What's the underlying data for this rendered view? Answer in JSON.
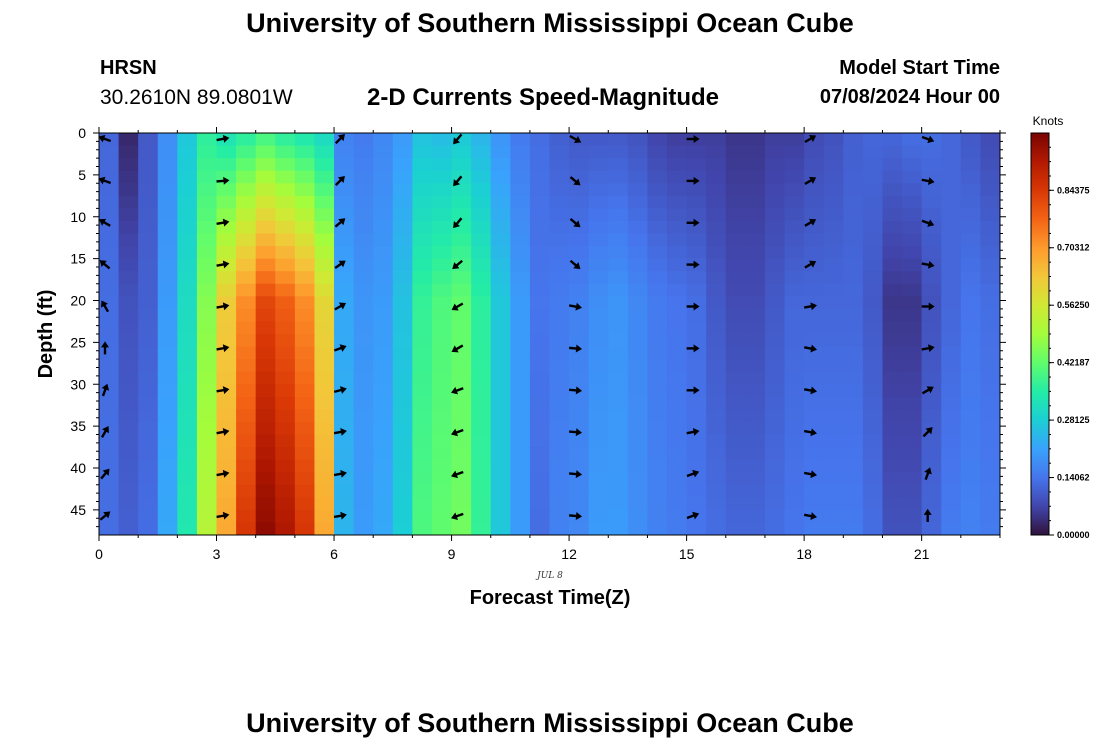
{
  "header": {
    "title": "University of Southern Mississippi Ocean Cube",
    "station": "HRSN",
    "coords": "30.2610N  89.0801W",
    "subtitle": "2-D Currents Speed-Magnitude",
    "start_label": "Model Start Time",
    "start_value": "07/08/2024 Hour 00"
  },
  "footer": {
    "title_repeat": "University of Southern Mississippi Ocean Cube"
  },
  "chart_data": {
    "type": "heatmap",
    "xlabel": "Forecast Time(Z)",
    "ylabel": "Depth (ft)",
    "date_label": "JUL 8",
    "colorbar_title": "Knots",
    "colorbar_ticks": [
      "0.00000",
      "0.14062",
      "0.28125",
      "0.42187",
      "0.56250",
      "0.70312",
      "0.84375"
    ],
    "colorbar_range": [
      0,
      0.984
    ],
    "x_ticks": [
      0,
      3,
      6,
      9,
      12,
      15,
      18,
      21
    ],
    "y_ticks": [
      0,
      5,
      10,
      15,
      20,
      25,
      30,
      35,
      40,
      45
    ],
    "xlim": [
      0,
      23
    ],
    "ylim": [
      48,
      0
    ],
    "colors": {
      "palette": [
        "#30123b",
        "#4145ab",
        "#4675ed",
        "#39a2fc",
        "#1bcfd4",
        "#24eca6",
        "#61fc6c",
        "#a4fc3b",
        "#d1e834",
        "#f3c63a",
        "#fe9b2d",
        "#f36315",
        "#d93806",
        "#b11901",
        "#7a0402"
      ]
    },
    "speed_knots": {
      "hours": [
        0,
        0.5,
        1,
        1.5,
        2,
        2.5,
        3,
        3.5,
        4,
        4.5,
        5,
        5.5,
        6,
        6.5,
        7,
        7.5,
        8,
        8.5,
        9,
        9.5,
        10,
        10.5,
        11,
        11.5,
        12,
        12.5,
        13,
        13.5,
        14,
        14.5,
        15,
        15.5,
        16,
        16.5,
        17,
        17.5,
        18,
        18.5,
        19,
        19.5,
        20,
        20.5,
        21,
        21.5,
        22,
        22.5,
        23
      ],
      "surface": [
        0.12,
        0.03,
        0.1,
        0.18,
        0.27,
        0.36,
        0.32,
        0.35,
        0.38,
        0.35,
        0.33,
        0.3,
        0.16,
        0.15,
        0.17,
        0.2,
        0.26,
        0.25,
        0.27,
        0.24,
        0.19,
        0.15,
        0.13,
        0.11,
        0.1,
        0.1,
        0.1,
        0.09,
        0.07,
        0.06,
        0.06,
        0.06,
        0.05,
        0.05,
        0.06,
        0.06,
        0.08,
        0.09,
        0.11,
        0.12,
        0.12,
        0.13,
        0.13,
        0.12,
        0.1,
        0.08,
        0.04
      ],
      "mid": [
        0.13,
        0.09,
        0.11,
        0.2,
        0.31,
        0.46,
        0.62,
        0.72,
        0.82,
        0.78,
        0.72,
        0.6,
        0.22,
        0.19,
        0.2,
        0.26,
        0.37,
        0.4,
        0.42,
        0.36,
        0.27,
        0.2,
        0.14,
        0.15,
        0.16,
        0.18,
        0.19,
        0.17,
        0.15,
        0.14,
        0.13,
        0.1,
        0.08,
        0.08,
        0.1,
        0.12,
        0.12,
        0.12,
        0.12,
        0.1,
        0.05,
        0.05,
        0.09,
        0.12,
        0.14,
        0.13,
        0.12
      ],
      "bottom": [
        0.13,
        0.11,
        0.13,
        0.22,
        0.34,
        0.52,
        0.68,
        0.85,
        0.96,
        0.92,
        0.85,
        0.68,
        0.24,
        0.2,
        0.22,
        0.28,
        0.4,
        0.42,
        0.44,
        0.37,
        0.27,
        0.2,
        0.13,
        0.16,
        0.17,
        0.2,
        0.2,
        0.18,
        0.16,
        0.15,
        0.14,
        0.13,
        0.12,
        0.12,
        0.13,
        0.14,
        0.15,
        0.15,
        0.15,
        0.13,
        0.09,
        0.09,
        0.12,
        0.15,
        0.16,
        0.15,
        0.14
      ]
    },
    "vector_hours": [
      0,
      3,
      6,
      9,
      12,
      15,
      18,
      21
    ],
    "vector_depths": [
      0,
      5,
      10,
      15,
      20,
      25,
      30,
      35,
      40,
      45
    ],
    "vector_direction_deg": [
      [
        290,
        290,
        300,
        310,
        330,
        0,
        20,
        30,
        40,
        50
      ],
      [
        80,
        85,
        80,
        80,
        80,
        80,
        80,
        80,
        80,
        80
      ],
      [
        45,
        45,
        50,
        55,
        60,
        70,
        75,
        80,
        80,
        80
      ],
      [
        220,
        220,
        220,
        230,
        240,
        240,
        250,
        250,
        250,
        250
      ],
      [
        120,
        130,
        130,
        130,
        100,
        95,
        95,
        95,
        95,
        95
      ],
      [
        90,
        90,
        90,
        90,
        90,
        90,
        90,
        80,
        70,
        70
      ],
      [
        60,
        60,
        60,
        60,
        80,
        100,
        100,
        100,
        100,
        100
      ],
      [
        110,
        100,
        110,
        100,
        90,
        80,
        60,
        45,
        20,
        0
      ]
    ]
  }
}
